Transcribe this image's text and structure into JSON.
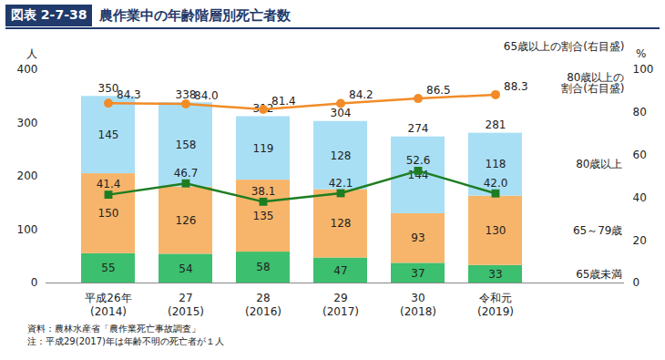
{
  "chart_data": {
    "type": "bar",
    "figure_label": "図表 2-7-38",
    "title": "農作業中の年齢階層別死亡者数",
    "y_label": "人",
    "y2_label": "%",
    "source": "資料：農林水産省「農作業死亡事故調査」",
    "note": "注：平成29(2017)年は年齢不明の死亡者が１人",
    "categories": [
      "平成26年\n(2014)",
      "27\n(2015)",
      "28\n(2016)",
      "29\n(2017)",
      "30\n(2018)",
      "令和元\n(2019)"
    ],
    "totals": [
      350,
      338,
      312,
      304,
      274,
      281
    ],
    "stacked": true,
    "data_labels": true,
    "grid": false,
    "ylim": [
      0,
      400
    ],
    "yticks": [
      0,
      100,
      200,
      300,
      400
    ],
    "y2lim": [
      0,
      100
    ],
    "y2ticks": [
      0,
      20,
      40,
      60,
      80,
      100
    ],
    "series": [
      {
        "name": "65歳未満",
        "type": "bar",
        "color": "#3cbf6e",
        "values": [
          55,
          54,
          58,
          47,
          37,
          33
        ]
      },
      {
        "name": "65～79歳",
        "type": "bar",
        "color": "#f7b56b",
        "values": [
          150,
          126,
          135,
          128,
          93,
          130
        ]
      },
      {
        "name": "80歳以上",
        "type": "bar",
        "color": "#a9dff5",
        "values": [
          145,
          158,
          119,
          128,
          144,
          118
        ]
      },
      {
        "name": "65歳以上の割合(右目盛)",
        "type": "line",
        "axis": "y2",
        "color": "#f28c28",
        "marker": "circle",
        "values": [
          84.3,
          84.0,
          81.4,
          84.2,
          86.5,
          88.3
        ],
        "value_labels": [
          "84.3",
          "84.0",
          "81.4",
          "84.2",
          "86.5",
          "88.3"
        ]
      },
      {
        "name": "80歳以上の\n割合(右目盛)",
        "type": "line",
        "axis": "y2",
        "color": "#1e7d22",
        "marker": "square",
        "values": [
          41.4,
          46.7,
          38.1,
          42.1,
          52.6,
          42.0
        ],
        "value_labels": [
          "41.4",
          "46.7",
          "38.1",
          "42.1",
          "52.6",
          "42.0"
        ]
      }
    ]
  }
}
